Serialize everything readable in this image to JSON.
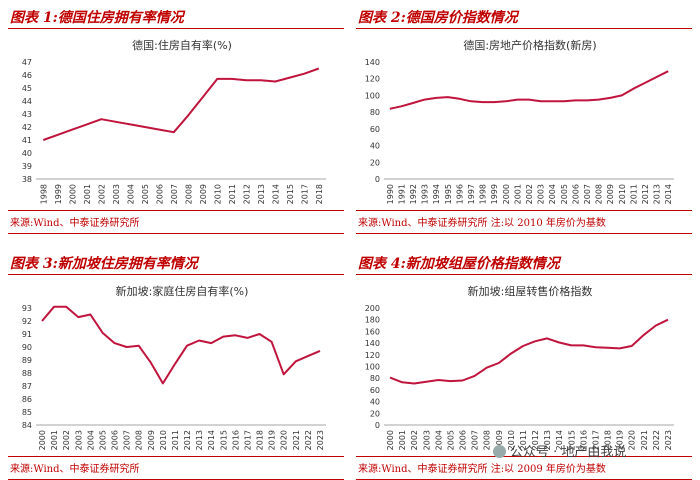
{
  "panels": [
    {
      "header": "图表 1:德国住房拥有率情况",
      "source": "来源:Wind、中泰证券研究所"
    },
    {
      "header": "图表 2:德国房价指数情况",
      "source": "来源:Wind、中泰证券研究所     注:以 2010 年房价为基数"
    },
    {
      "header": "图表 3:新加坡住房拥有率情况",
      "source": "来源:Wind、中泰证券研究所"
    },
    {
      "header": "图表 4:新加坡组屋价格指数情况",
      "source": "来源:Wind、中泰证券研究所     注:以 2009 年房价为基数"
    }
  ],
  "watermark": {
    "text": "公众号 · 地产由我说",
    "icon": "wechat-icon"
  },
  "chart_data": [
    {
      "type": "line",
      "title": "德国:住房自有率(%)",
      "x": [
        "1998",
        "1999",
        "2000",
        "2001",
        "2002",
        "2003",
        "2004",
        "2005",
        "2006",
        "2007",
        "2008",
        "2009",
        "2010",
        "2011",
        "2012",
        "2013",
        "2014",
        "2015",
        "2017",
        "2018"
      ],
      "series": [
        {
          "values": [
            41.0,
            41.4,
            41.8,
            42.2,
            42.6,
            42.4,
            42.2,
            42.0,
            41.8,
            41.6,
            42.9,
            44.3,
            45.7,
            45.7,
            45.6,
            45.6,
            45.5,
            45.8,
            46.1,
            46.5
          ]
        }
      ],
      "ylim": [
        38,
        47
      ],
      "yticks": [
        38,
        39,
        40,
        41,
        42,
        43,
        44,
        45,
        46,
        47
      ],
      "color": "#c0143c"
    },
    {
      "type": "line",
      "title": "德国:房地产价格指数(新房)",
      "x": [
        "1990",
        "1991",
        "1992",
        "1993",
        "1994",
        "1995",
        "1996",
        "1997",
        "1998",
        "1999",
        "2000",
        "2001",
        "2002",
        "2003",
        "2004",
        "2005",
        "2006",
        "2007",
        "2008",
        "2009",
        "2010",
        "2011",
        "2012",
        "2013",
        "2014"
      ],
      "series": [
        {
          "values": [
            84,
            87,
            91,
            95,
            97,
            98,
            96,
            93,
            92,
            92,
            93,
            95,
            95,
            93,
            93,
            93,
            94,
            94,
            95,
            97,
            100,
            108,
            115,
            122,
            129
          ]
        }
      ],
      "ylim": [
        0,
        140
      ],
      "yticks": [
        0,
        20,
        40,
        60,
        80,
        100,
        120,
        140
      ],
      "color": "#c0143c"
    },
    {
      "type": "line",
      "title": "新加坡:家庭住房自有率(%)",
      "x": [
        "2000",
        "2001",
        "2002",
        "2003",
        "2004",
        "2005",
        "2006",
        "2007",
        "2008",
        "2009",
        "2010",
        "2011",
        "2012",
        "2013",
        "2014",
        "2015",
        "2016",
        "2017",
        "2018",
        "2019",
        "2020",
        "2021",
        "2022",
        "2023"
      ],
      "series": [
        {
          "values": [
            92.0,
            93.1,
            93.1,
            92.3,
            92.5,
            91.1,
            90.3,
            90.0,
            90.1,
            88.8,
            87.2,
            88.7,
            90.1,
            90.5,
            90.3,
            90.8,
            90.9,
            90.7,
            91.0,
            90.4,
            87.9,
            88.9,
            89.3,
            89.7
          ]
        }
      ],
      "ylim": [
        84,
        93
      ],
      "yticks": [
        84,
        85,
        86,
        87,
        88,
        89,
        90,
        91,
        92,
        93
      ],
      "color": "#c0143c"
    },
    {
      "type": "line",
      "title": "新加坡:组屋转售价格指数",
      "x": [
        "2000",
        "2001",
        "2002",
        "2003",
        "2004",
        "2005",
        "2006",
        "2007",
        "2008",
        "2009",
        "2010",
        "2011",
        "2012",
        "2013",
        "2014",
        "2015",
        "2016",
        "2017",
        "2018",
        "2019",
        "2020",
        "2021",
        "2022",
        "2023"
      ],
      "series": [
        {
          "values": [
            81,
            73,
            71,
            74,
            77,
            75,
            76,
            84,
            98,
            106,
            122,
            135,
            143,
            148,
            141,
            136,
            136,
            133,
            132,
            131,
            135,
            154,
            170,
            180
          ]
        }
      ],
      "ylim": [
        0,
        200
      ],
      "yticks": [
        0,
        20,
        40,
        60,
        80,
        100,
        120,
        140,
        160,
        180,
        200
      ],
      "color": "#c0143c"
    }
  ]
}
